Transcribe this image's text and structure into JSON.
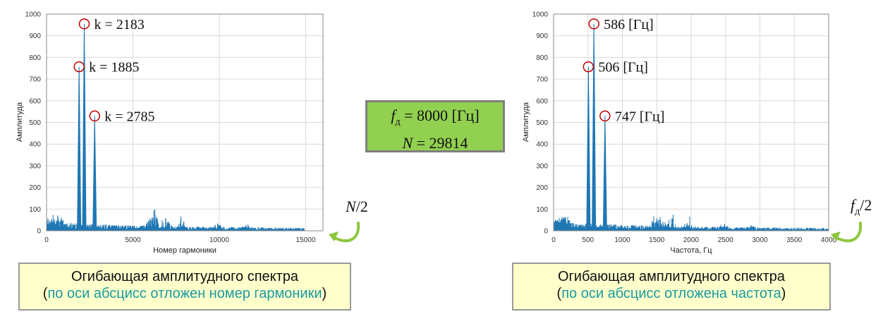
{
  "params_box": {
    "fs_symbol": "f",
    "fs_subscript": "д",
    "fs_value": " = 8000 [Гц]",
    "n_symbol": "N",
    "n_value": " = 29814"
  },
  "left_edge_label": {
    "symbol": "N",
    "rest": "/2"
  },
  "right_edge_label": {
    "symbol": "f",
    "subscript": "д",
    "rest": "/2"
  },
  "left_caption": {
    "line1": "Огибающая амплитудного спектра",
    "open": "(",
    "highlight": "по оси абсцисс отложен номер гармоники",
    "close": ")"
  },
  "right_caption": {
    "line1": "Огибающая амплитудного спектра",
    "open": "(",
    "highlight": "по оси абсцисс отложена частота",
    "close": ")"
  },
  "colors": {
    "line": "#1f77b4",
    "marker": "#c00000",
    "arrow": "#8dc63f",
    "params_bg": "#92d050",
    "caption_bg": "#ffffcc",
    "highlight": "#1a9aa0"
  },
  "chart_data": [
    {
      "type": "line",
      "xlabel": "Номер гармоники",
      "ylabel": "Амплитуда",
      "xlim": [
        0,
        16000
      ],
      "ylim": [
        0,
        1000
      ],
      "xticks": [
        0,
        5000,
        10000,
        15000
      ],
      "yticks": [
        0,
        100,
        200,
        300,
        400,
        500,
        600,
        700,
        800,
        900,
        1000
      ],
      "grid": true,
      "peaks": [
        {
          "x": 1885,
          "y": 757,
          "label": "k = 1885"
        },
        {
          "x": 2183,
          "y": 955,
          "label": "k = 2183"
        },
        {
          "x": 2785,
          "y": 530,
          "label": "k = 2785"
        }
      ],
      "x_end": 14907
    },
    {
      "type": "line",
      "xlabel": "Частота, Гц",
      "ylabel": "Амплитуда",
      "xlim": [
        0,
        4000
      ],
      "ylim": [
        0,
        1000
      ],
      "xticks": [
        0,
        500,
        1000,
        1500,
        2000,
        2500,
        3000,
        3500,
        4000
      ],
      "yticks": [
        0,
        100,
        200,
        300,
        400,
        500,
        600,
        700,
        800,
        900,
        1000
      ],
      "grid": true,
      "peaks": [
        {
          "x": 506,
          "y": 757,
          "label": "506 [Гц]"
        },
        {
          "x": 586,
          "y": 955,
          "label": "586 [Гц]"
        },
        {
          "x": 747,
          "y": 530,
          "label": "747 [Гц]"
        }
      ],
      "x_end": 4000
    }
  ]
}
